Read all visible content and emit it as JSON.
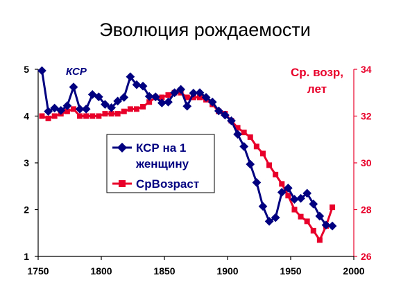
{
  "title": "Эволюция рождаемости",
  "colors": {
    "tfr": "#000080",
    "age": "#e8002a",
    "axis": "#000000"
  },
  "annotations": {
    "left_series_label": "КСР",
    "right_series_label_line1": "Ср. возр,",
    "right_series_label_line2": "лет"
  },
  "legend": {
    "tfr_line1": "КСР на 1",
    "tfr_line2": "женщину",
    "age": "СрВозраст"
  },
  "chart_data": {
    "type": "line",
    "title": "Эволюция рождаемости",
    "x_ticks": [
      1750,
      1800,
      1850,
      1900,
      1950,
      2000
    ],
    "xlim": [
      1750,
      2000
    ],
    "y_left_ticks": [
      1,
      2,
      3,
      4,
      5
    ],
    "ylim_left": [
      1,
      5
    ],
    "y_right_ticks": [
      26,
      28,
      30,
      32,
      34
    ],
    "ylim_right": [
      26,
      34
    ],
    "legend_position": "center-left",
    "series": [
      {
        "name": "КСР на 1 женщину",
        "axis": "left",
        "marker": "diamond",
        "color": "#000080",
        "points": [
          [
            1753,
            4.97
          ],
          [
            1758,
            4.1
          ],
          [
            1763,
            4.17
          ],
          [
            1768,
            4.12
          ],
          [
            1773,
            4.22
          ],
          [
            1778,
            4.62
          ],
          [
            1783,
            4.15
          ],
          [
            1788,
            4.15
          ],
          [
            1793,
            4.46
          ],
          [
            1798,
            4.41
          ],
          [
            1803,
            4.25
          ],
          [
            1808,
            4.18
          ],
          [
            1813,
            4.32
          ],
          [
            1818,
            4.4
          ],
          [
            1823,
            4.84
          ],
          [
            1828,
            4.67
          ],
          [
            1833,
            4.64
          ],
          [
            1838,
            4.42
          ],
          [
            1843,
            4.41
          ],
          [
            1848,
            4.28
          ],
          [
            1853,
            4.3
          ],
          [
            1858,
            4.5
          ],
          [
            1863,
            4.57
          ],
          [
            1868,
            4.21
          ],
          [
            1873,
            4.49
          ],
          [
            1878,
            4.5
          ],
          [
            1883,
            4.4
          ],
          [
            1888,
            4.3
          ],
          [
            1893,
            4.11
          ],
          [
            1898,
            4.02
          ],
          [
            1903,
            3.9
          ],
          [
            1908,
            3.61
          ],
          [
            1913,
            3.35
          ],
          [
            1918,
            2.97
          ],
          [
            1923,
            2.58
          ],
          [
            1928,
            2.07
          ],
          [
            1933,
            1.75
          ],
          [
            1938,
            1.83
          ],
          [
            1943,
            2.37
          ],
          [
            1948,
            2.46
          ],
          [
            1953,
            2.22
          ],
          [
            1958,
            2.24
          ],
          [
            1963,
            2.35
          ],
          [
            1968,
            2.12
          ],
          [
            1973,
            1.86
          ],
          [
            1978,
            1.67
          ],
          [
            1983,
            1.65
          ]
        ]
      },
      {
        "name": "СрВозраст",
        "axis": "right",
        "marker": "square",
        "color": "#e8002a",
        "points": [
          [
            1753,
            32.0
          ],
          [
            1758,
            31.9
          ],
          [
            1763,
            32.0
          ],
          [
            1768,
            32.1
          ],
          [
            1773,
            32.2
          ],
          [
            1778,
            32.3
          ],
          [
            1783,
            32.0
          ],
          [
            1788,
            32.0
          ],
          [
            1793,
            32.0
          ],
          [
            1798,
            32.0
          ],
          [
            1803,
            32.1
          ],
          [
            1808,
            32.1
          ],
          [
            1813,
            32.1
          ],
          [
            1818,
            32.2
          ],
          [
            1823,
            32.3
          ],
          [
            1828,
            32.3
          ],
          [
            1833,
            32.4
          ],
          [
            1838,
            32.6
          ],
          [
            1843,
            32.8
          ],
          [
            1848,
            32.8
          ],
          [
            1853,
            32.9
          ],
          [
            1858,
            33.0
          ],
          [
            1863,
            33.0
          ],
          [
            1868,
            32.8
          ],
          [
            1873,
            32.8
          ],
          [
            1878,
            32.8
          ],
          [
            1883,
            32.7
          ],
          [
            1888,
            32.5
          ],
          [
            1893,
            32.2
          ],
          [
            1898,
            32.1
          ],
          [
            1903,
            31.8
          ],
          [
            1908,
            31.5
          ],
          [
            1913,
            31.3
          ],
          [
            1918,
            31.1
          ],
          [
            1923,
            30.7
          ],
          [
            1928,
            30.4
          ],
          [
            1933,
            29.9
          ],
          [
            1938,
            29.5
          ],
          [
            1943,
            29.1
          ],
          [
            1948,
            28.6
          ],
          [
            1953,
            28.0
          ],
          [
            1958,
            27.7
          ],
          [
            1963,
            27.5
          ],
          [
            1968,
            27.1
          ],
          [
            1973,
            26.7
          ],
          [
            1978,
            27.3
          ],
          [
            1983,
            28.1
          ]
        ]
      }
    ]
  }
}
